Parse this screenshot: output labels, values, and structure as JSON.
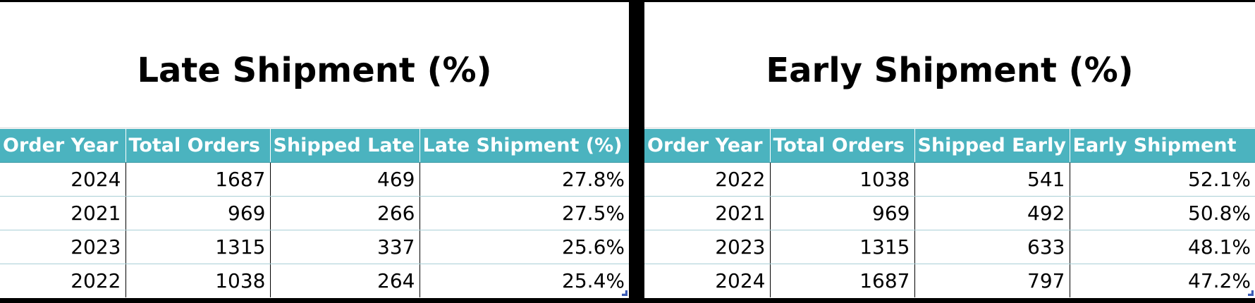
{
  "left": {
    "title": "Late Shipment (%)",
    "columns": [
      "Order Year",
      "Total Orders",
      "Shipped Late",
      "Late Shipment (%)"
    ],
    "rows": [
      [
        "2024",
        "1687",
        "469",
        "27.8%"
      ],
      [
        "2021",
        "969",
        "266",
        "27.5%"
      ],
      [
        "2023",
        "1315",
        "337",
        "25.6%"
      ],
      [
        "2022",
        "1038",
        "264",
        "25.4%"
      ]
    ]
  },
  "right": {
    "title": "Early Shipment (%)",
    "columns": [
      "Order Year",
      "Total Orders",
      "Shipped Early",
      "Early Shipment"
    ],
    "rows": [
      [
        "2022",
        "1038",
        "541",
        "52.1%"
      ],
      [
        "2021",
        "969",
        "492",
        "50.8%"
      ],
      [
        "2023",
        "1315",
        "633",
        "48.1%"
      ],
      [
        "2024",
        "1687",
        "797",
        "47.2%"
      ]
    ]
  },
  "colors": {
    "header_bg": "#4bb3bf",
    "header_text": "#ffffff",
    "divider": "#000000"
  }
}
